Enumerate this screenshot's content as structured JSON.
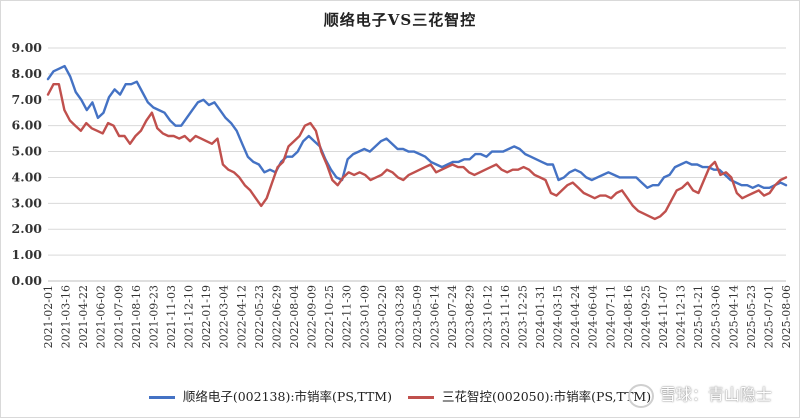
{
  "chart_data": {
    "type": "line",
    "title": "顺络电子VS三花智控",
    "ylim": [
      0,
      9
    ],
    "y_ticks": [
      "0.00",
      "1.00",
      "2.00",
      "3.00",
      "4.00",
      "5.00",
      "6.00",
      "7.00",
      "8.00",
      "9.00"
    ],
    "grid": "horizontal",
    "legend_position": "bottom",
    "x_ticks": [
      "2021-02-01",
      "2021-03-16",
      "2021-04-22",
      "2021-06-02",
      "2021-07-09",
      "2021-08-16",
      "2021-09-23",
      "2021-11-03",
      "2021-12-10",
      "2022-01-19",
      "2022-03-04",
      "2022-04-12",
      "2022-05-23",
      "2022-06-29",
      "2022-08-04",
      "2022-09-09",
      "2022-10-25",
      "2022-11-30",
      "2023-01-09",
      "2023-02-20",
      "2023-03-28",
      "2023-05-09",
      "2023-06-14",
      "2023-07-24",
      "2023-08-29",
      "2023-10-12",
      "2023-11-16",
      "2023-12-25",
      "2024-01-31",
      "2024-03-15",
      "2024-04-24",
      "2024-06-04",
      "2024-07-11",
      "2024-08-16",
      "2024-09-25",
      "2024-11-07",
      "2024-12-13",
      "2025-01-21",
      "2025-03-06",
      "2025-04-14",
      "2025-05-23",
      "2025-07-01",
      "2025-08-06"
    ],
    "series": [
      {
        "name": "顺络电子(002138):市销率(PS,TTM)",
        "color": "#4472c4",
        "values": [
          7.8,
          8.1,
          8.2,
          8.3,
          7.9,
          7.3,
          7.0,
          6.6,
          6.9,
          6.3,
          6.5,
          7.1,
          7.4,
          7.2,
          7.6,
          7.6,
          7.7,
          7.3,
          6.9,
          6.7,
          6.6,
          6.5,
          6.2,
          6.0,
          6.0,
          6.3,
          6.6,
          6.9,
          7.0,
          6.8,
          6.9,
          6.6,
          6.3,
          6.1,
          5.8,
          5.3,
          4.8,
          4.6,
          4.5,
          4.2,
          4.3,
          4.2,
          4.6,
          4.8,
          4.8,
          5.0,
          5.4,
          5.6,
          5.4,
          5.2,
          4.7,
          4.3,
          4.0,
          3.9,
          4.7,
          4.9,
          5.0,
          5.1,
          5.0,
          5.2,
          5.4,
          5.5,
          5.3,
          5.1,
          5.1,
          5.0,
          5.0,
          4.9,
          4.8,
          4.6,
          4.5,
          4.4,
          4.5,
          4.6,
          4.6,
          4.7,
          4.7,
          4.9,
          4.9,
          4.8,
          5.0,
          5.0,
          5.0,
          5.1,
          5.2,
          5.1,
          4.9,
          4.8,
          4.7,
          4.6,
          4.5,
          4.5,
          3.9,
          4.0,
          4.2,
          4.3,
          4.2,
          4.0,
          3.9,
          4.0,
          4.1,
          4.2,
          4.1,
          4.0,
          4.0,
          4.0,
          4.0,
          3.8,
          3.6,
          3.7,
          3.7,
          4.0,
          4.1,
          4.4,
          4.5,
          4.6,
          4.5,
          4.5,
          4.4,
          4.4,
          4.3,
          4.3,
          4.1,
          3.9,
          3.8,
          3.7,
          3.7,
          3.6,
          3.7,
          3.6,
          3.6,
          3.7,
          3.8,
          3.7
        ]
      },
      {
        "name": "三花智控(002050):市销率(PS,TTM)",
        "color": "#c0504d",
        "values": [
          7.2,
          7.6,
          7.6,
          6.6,
          6.2,
          6.0,
          5.8,
          6.1,
          5.9,
          5.8,
          5.7,
          6.1,
          6.0,
          5.6,
          5.6,
          5.3,
          5.6,
          5.8,
          6.2,
          6.5,
          5.9,
          5.7,
          5.6,
          5.6,
          5.5,
          5.6,
          5.4,
          5.6,
          5.5,
          5.4,
          5.3,
          5.5,
          4.5,
          4.3,
          4.2,
          4.0,
          3.7,
          3.5,
          3.2,
          2.9,
          3.2,
          3.8,
          4.4,
          4.6,
          5.2,
          5.4,
          5.6,
          6.0,
          6.1,
          5.8,
          5.0,
          4.5,
          3.9,
          3.7,
          4.0,
          4.2,
          4.1,
          4.2,
          4.1,
          3.9,
          4.0,
          4.1,
          4.3,
          4.2,
          4.0,
          3.9,
          4.1,
          4.2,
          4.3,
          4.4,
          4.5,
          4.2,
          4.3,
          4.4,
          4.5,
          4.4,
          4.4,
          4.2,
          4.1,
          4.2,
          4.3,
          4.4,
          4.5,
          4.3,
          4.2,
          4.3,
          4.3,
          4.4,
          4.3,
          4.1,
          4.0,
          3.9,
          3.4,
          3.3,
          3.5,
          3.7,
          3.8,
          3.6,
          3.4,
          3.3,
          3.2,
          3.3,
          3.3,
          3.2,
          3.4,
          3.5,
          3.2,
          2.9,
          2.7,
          2.6,
          2.5,
          2.4,
          2.5,
          2.7,
          3.1,
          3.5,
          3.6,
          3.8,
          3.5,
          3.4,
          3.9,
          4.4,
          4.6,
          4.1,
          4.2,
          4.0,
          3.4,
          3.2,
          3.3,
          3.4,
          3.5,
          3.3,
          3.4,
          3.7,
          3.9,
          4.0
        ]
      }
    ]
  },
  "legend": {
    "items": [
      {
        "label": "顺络电子(002138):市销率(PS,TTM)",
        "color": "#4472c4"
      },
      {
        "label": "三花智控(002050):市销率(PS,TTM)",
        "color": "#c0504d"
      }
    ]
  },
  "watermark": {
    "text": "雪球：青山隐士"
  }
}
